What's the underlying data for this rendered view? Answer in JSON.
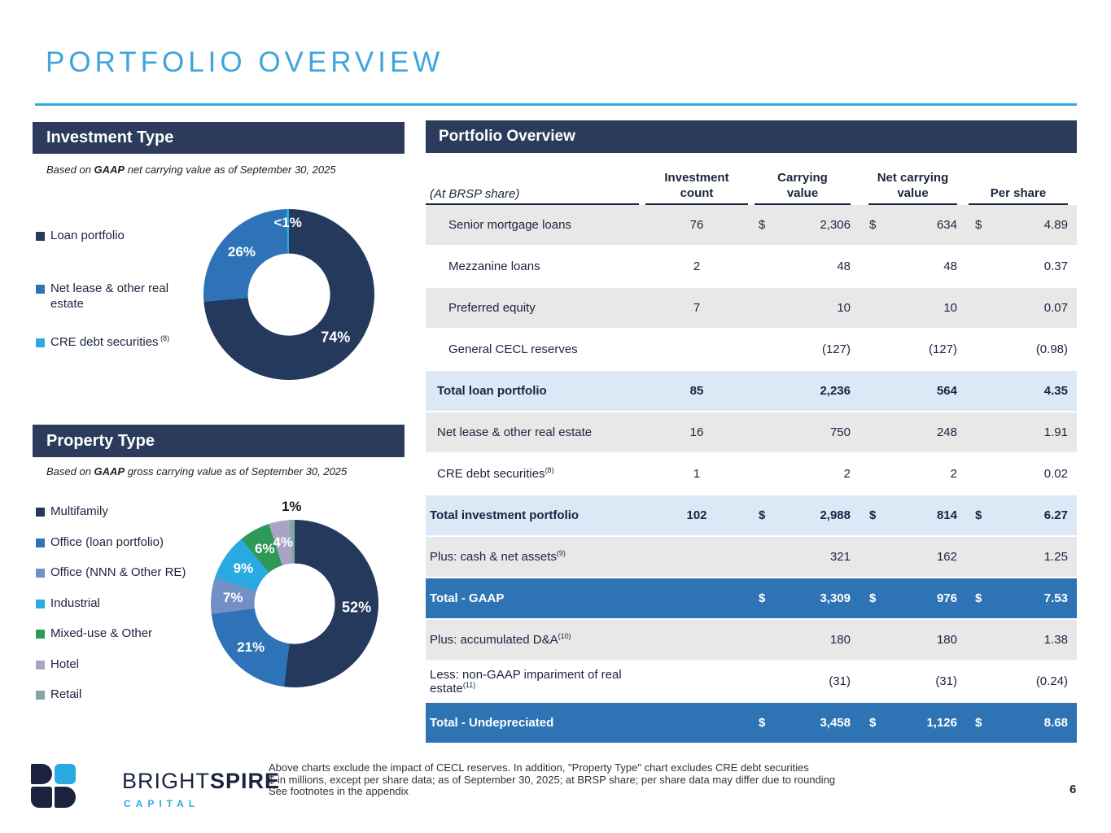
{
  "slide": {
    "title": "PORTFOLIO OVERVIEW",
    "page_number": "6"
  },
  "colors": {
    "accent_blue": "#29ABE2",
    "title_blue": "#3FA5DC",
    "header_navy": "#2C3A5C",
    "total_row_blue": "#2E74B5",
    "subtotal_row_blue": "#DBE8F6",
    "gray_row": "#E8E8E8"
  },
  "investment_panel": {
    "header": "Investment Type",
    "subtitle": {
      "prefix": "Based on ",
      "bold": "GAAP",
      "rest": " net carrying value as of September 30, 2025"
    }
  },
  "property_panel": {
    "header": "Property Type",
    "subtitle": {
      "prefix": "Based on ",
      "bold": "GAAP",
      "rest": " gross carrying value as of September 30, 2025"
    }
  },
  "chart_data": [
    {
      "id": "investment_type",
      "type": "pie",
      "style": "donut",
      "title": "Investment Type",
      "note": "Based on GAAP net carrying value as of September 30, 2025",
      "legend_position": "left",
      "start_angle": "top, clockwise",
      "slices": [
        {
          "label": "Loan portfolio",
          "pct": 74,
          "pct_label": "74%",
          "color": "#24395C"
        },
        {
          "label": "Net lease & other real estate",
          "pct": 26,
          "pct_label": "26%",
          "color": "#2E73B8"
        },
        {
          "label": "CRE debt securities",
          "sup": "(8)",
          "pct": 0.5,
          "pct_label": "<1%",
          "color": "#29ABE2",
          "label_r": 0.84
        }
      ]
    },
    {
      "id": "property_type",
      "type": "pie",
      "style": "donut",
      "title": "Property Type",
      "note": "Based on GAAP gross carrying value as of September 30, 2025",
      "legend_position": "left",
      "start_angle": "top, clockwise",
      "slices": [
        {
          "label": "Multifamily",
          "pct": 52,
          "pct_label": "52%",
          "color": "#24395C"
        },
        {
          "label": "Office (loan portfolio)",
          "pct": 21,
          "pct_label": "21%",
          "color": "#2E73B8"
        },
        {
          "label": "Office (NNN & Other RE)",
          "pct": 7,
          "pct_label": "7%",
          "color": "#7290C4"
        },
        {
          "label": "Industrial",
          "pct": 9,
          "pct_label": "9%",
          "color": "#29ABE2"
        },
        {
          "label": "Mixed-use & Other",
          "pct": 6,
          "pct_label": "6%",
          "color": "#2E9858"
        },
        {
          "label": "Hotel",
          "pct": 4,
          "pct_label": "4%",
          "color": "#A8A4C5"
        },
        {
          "label": "Retail",
          "pct": 1,
          "pct_label": "1%",
          "color": "#7FA7A3",
          "label_outside": true
        }
      ]
    }
  ],
  "table": {
    "header": "Portfolio Overview",
    "row_label_header": "(At BRSP share)",
    "columns": [
      {
        "line1": "Investment",
        "line2": "count"
      },
      {
        "line1": "Carrying",
        "line2": "value"
      },
      {
        "line1": "Net carrying",
        "line2": "value"
      },
      {
        "line1": "",
        "line2": "Per share"
      }
    ],
    "rows": [
      {
        "label": "Senior mortgage loans",
        "sup": "",
        "count": "76",
        "usd": true,
        "carrying": "2,306",
        "net": "634",
        "per_share": "4.89",
        "bg": "gray",
        "indent": 2,
        "bold": false
      },
      {
        "label": "Mezzanine loans",
        "sup": "",
        "count": "2",
        "usd": false,
        "carrying": "48",
        "net": "48",
        "per_share": "0.37",
        "bg": "white",
        "indent": 2,
        "bold": false
      },
      {
        "label": "Preferred equity",
        "sup": "",
        "count": "7",
        "usd": false,
        "carrying": "10",
        "net": "10",
        "per_share": "0.07",
        "bg": "gray",
        "indent": 2,
        "bold": false
      },
      {
        "label": "General CECL reserves",
        "sup": "",
        "count": "",
        "usd": false,
        "carrying": "(127)",
        "net": "(127)",
        "per_share": "(0.98)",
        "bg": "white",
        "indent": 2,
        "bold": false
      },
      {
        "label": "Total loan portfolio",
        "sup": "",
        "count": "85",
        "usd": false,
        "carrying": "2,236",
        "net": "564",
        "per_share": "4.35",
        "bg": "subtotal",
        "indent": 1,
        "bold": true
      },
      {
        "label": "Net lease & other real estate",
        "sup": "",
        "count": "16",
        "usd": false,
        "carrying": "750",
        "net": "248",
        "per_share": "1.91",
        "bg": "gray",
        "indent": 1,
        "bold": false
      },
      {
        "label": "CRE debt securities",
        "sup": "(8)",
        "count": "1",
        "usd": false,
        "carrying": "2",
        "net": "2",
        "per_share": "0.02",
        "bg": "white",
        "indent": 1,
        "bold": false
      },
      {
        "label": "Total investment portfolio",
        "sup": "",
        "count": "102",
        "usd": true,
        "carrying": "2,988",
        "net": "814",
        "per_share": "6.27",
        "bg": "subtotal",
        "indent": 0,
        "bold": true
      },
      {
        "label": "Plus: cash & net assets",
        "sup": "(9)",
        "count": "",
        "usd": false,
        "carrying": "321",
        "net": "162",
        "per_share": "1.25",
        "bg": "gray",
        "indent": 0,
        "bold": false
      },
      {
        "label": "Total - GAAP",
        "sup": "",
        "count": "",
        "usd": true,
        "carrying": "3,309",
        "net": "976",
        "per_share": "7.53",
        "bg": "total",
        "indent": 0,
        "bold": true
      },
      {
        "label": "Plus: accumulated D&A",
        "sup": "(10)",
        "count": "",
        "usd": false,
        "carrying": "180",
        "net": "180",
        "per_share": "1.38",
        "bg": "gray",
        "indent": 0,
        "bold": false
      },
      {
        "label": "Less: non-GAAP impariment of real estate",
        "sup": "(11)",
        "count": "",
        "usd": false,
        "carrying": "(31)",
        "net": "(31)",
        "per_share": "(0.24)",
        "bg": "white",
        "indent": 0,
        "bold": false
      },
      {
        "label": "Total - Undepreciated",
        "sup": "",
        "count": "",
        "usd": true,
        "carrying": "3,458",
        "net": "1,126",
        "per_share": "8.68",
        "bg": "total",
        "indent": 0,
        "bold": true
      }
    ]
  },
  "footer": {
    "brand_regular": "BRIGHT",
    "brand_bold": "SPIRE",
    "brand_sub": "CAPITAL",
    "notes": [
      "Above charts exclude the impact of CECL reserves. In addition, \"Property Type\" chart excludes CRE debt securities",
      "$ in millions, except per share data; as of September 30, 2025; at BRSP share; per share data may differ due to rounding",
      "See footnotes in the appendix"
    ]
  }
}
